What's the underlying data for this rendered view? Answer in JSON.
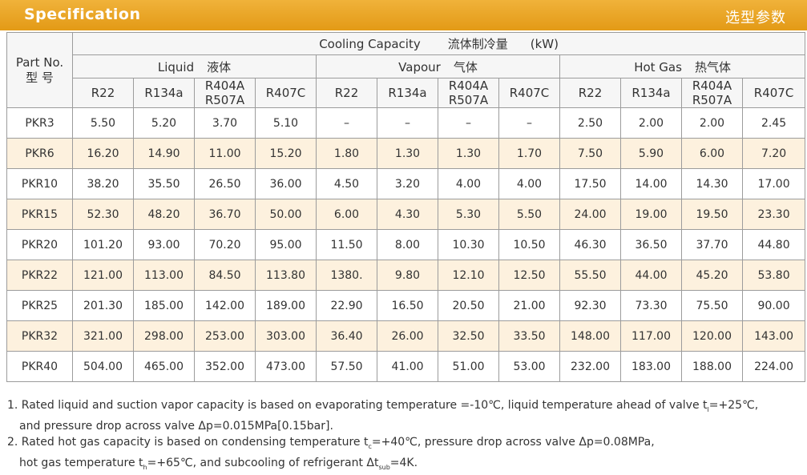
{
  "header": {
    "title": "Specification",
    "title_cn": "选型参数"
  },
  "table": {
    "part_no_label": "Part No.",
    "part_no_label_cn": "型 号",
    "capacity_label": "Cooling Capacity",
    "capacity_label_cn": "流体制冷量",
    "capacity_unit": "(kW)",
    "groups": [
      {
        "label": "Liquid",
        "label_cn": "液体"
      },
      {
        "label": "Vapour",
        "label_cn": "气体"
      },
      {
        "label": "Hot Gas",
        "label_cn": "热气体"
      }
    ],
    "refrigerants": [
      {
        "line1": "R22"
      },
      {
        "line1": "R134a"
      },
      {
        "line1": "R404A",
        "line2": "R507A"
      },
      {
        "line1": "R407C"
      }
    ],
    "rows": [
      [
        "PKR3",
        "5.50",
        "5.20",
        "3.70",
        "5.10",
        "–",
        "–",
        "–",
        "–",
        "2.50",
        "2.00",
        "2.00",
        "2.45"
      ],
      [
        "PKR6",
        "16.20",
        "14.90",
        "11.00",
        "15.20",
        "1.80",
        "1.30",
        "1.30",
        "1.70",
        "7.50",
        "5.90",
        "6.00",
        "7.20"
      ],
      [
        "PKR10",
        "38.20",
        "35.50",
        "26.50",
        "36.00",
        "4.50",
        "3.20",
        "4.00",
        "4.00",
        "17.50",
        "14.00",
        "14.30",
        "17.00"
      ],
      [
        "PKR15",
        "52.30",
        "48.20",
        "36.70",
        "50.00",
        "6.00",
        "4.30",
        "5.30",
        "5.50",
        "24.00",
        "19.00",
        "19.50",
        "23.30"
      ],
      [
        "PKR20",
        "101.20",
        "93.00",
        "70.20",
        "95.00",
        "11.50",
        "8.00",
        "10.30",
        "10.50",
        "46.30",
        "36.50",
        "37.70",
        "44.80"
      ],
      [
        "PKR22",
        "121.00",
        "113.00",
        "84.50",
        "113.80",
        "1380.",
        "9.80",
        "12.10",
        "12.50",
        "55.50",
        "44.00",
        "45.20",
        "53.80"
      ],
      [
        "PKR25",
        "201.30",
        "185.00",
        "142.00",
        "189.00",
        "22.90",
        "16.50",
        "20.50",
        "21.00",
        "92.30",
        "73.30",
        "75.50",
        "90.00"
      ],
      [
        "PKR32",
        "321.00",
        "298.00",
        "253.00",
        "303.00",
        "36.40",
        "26.00",
        "32.50",
        "33.50",
        "148.00",
        "117.00",
        "120.00",
        "143.00"
      ],
      [
        "PKR40",
        "504.00",
        "465.00",
        "352.00",
        "473.00",
        "57.50",
        "41.00",
        "51.00",
        "53.00",
        "232.00",
        "183.00",
        "188.00",
        "224.00"
      ]
    ]
  },
  "notes": {
    "n1_a": "1. Rated liquid and suction vapor capacity is based on evaporating temperature =-10℃, liquid temperature ahead of valve t",
    "n1_sub": "l",
    "n1_b": "=+25℃,",
    "n1_c": "and pressure drop across valve Δp=0.015MPa[0.15bar].",
    "n2_a": "2. Rated hot gas capacity is based on condensing temperature t",
    "n2_sub": "c",
    "n2_b": "=+40℃, pressure drop across valve Δp=0.08MPa,",
    "n2_c": "hot  gas temperature  t",
    "n2_sub2": "h",
    "n2_d": "=+65℃, and subcooling of refrigerant  Δt",
    "n2_sub3": "sub",
    "n2_e": "=4K."
  }
}
